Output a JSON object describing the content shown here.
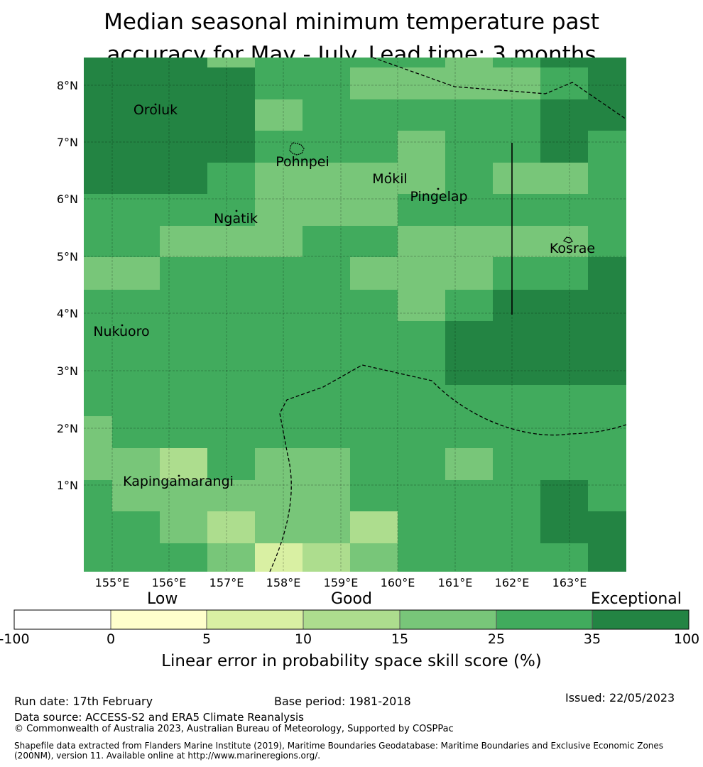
{
  "title": {
    "line1": "Median seasonal minimum temperature past",
    "line2": "accuracy for May - July. Lead time: 3 months"
  },
  "map": {
    "lon_labels": [
      "155°E",
      "156°E",
      "157°E",
      "158°E",
      "159°E",
      "160°E",
      "161°E",
      "162°E",
      "163°E"
    ],
    "lat_labels": [
      "1°N",
      "2°N",
      "3°N",
      "4°N",
      "5°N",
      "6°N",
      "7°N",
      "8°N"
    ],
    "places": {
      "oroluk": "Oroluk",
      "pohnpei": "Pohnpei",
      "mokil": "Mokil",
      "pingelap": "Pingelap",
      "ngatik": "Ngatik",
      "kosrae": "Kosrae",
      "nukuoro": "Nukuoro",
      "kapingamarangi": "Kapingamarangi"
    },
    "category_colors": {
      "low": "#ffffcc",
      "c2": "#d9f0a3",
      "c3": "#addd8e",
      "c4": "#78c679",
      "c5": "#41ab5d",
      "c6": "#238443"
    }
  },
  "colorbar": {
    "labels": {
      "low": "Low",
      "good": "Good",
      "exceptional": "Exceptional"
    },
    "ticks": [
      "-100",
      "0",
      "5",
      "10",
      "15",
      "25",
      "35",
      "100"
    ],
    "title": "Linear error in probability space skill score (%)"
  },
  "footer": {
    "run_date": "Run date: 17th February",
    "base_period": "Base period: 1981-2018",
    "issued": "Issued: 22/05/2023",
    "data_source": "Data source: ACCESS-S2 and ERA5 Climate Reanalysis",
    "copyright": "© Commonwealth of Australia 2023, Australian Bureau of Meteorology, Supported by COSPPac",
    "shapefile": "Shapefile data extracted from Flanders Marine Institute (2019), Maritime Boundaries Geodatabase: Maritime Boundaries and Exclusive Economic Zones (200NM), version 11. Available online at http://www.marineregions.org/."
  }
}
